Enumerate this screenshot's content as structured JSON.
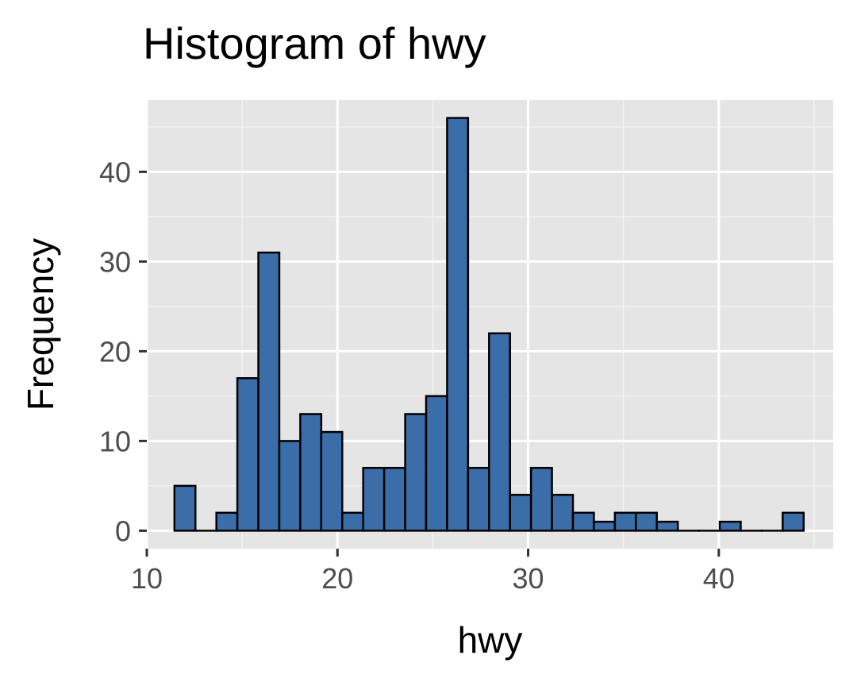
{
  "chart_data": {
    "type": "bar",
    "title": "Histogram of hwy",
    "xlabel": "hwy",
    "ylabel": "Frequency",
    "xlim": [
      10,
      46
    ],
    "ylim": [
      -2,
      48
    ],
    "x_ticks": [
      10,
      20,
      30,
      40
    ],
    "y_ticks": [
      0,
      10,
      20,
      30,
      40
    ],
    "grid": true,
    "legend": "none",
    "bin_width": 1.1,
    "bins": [
      {
        "start": 11.45,
        "end": 12.55,
        "count": 5
      },
      {
        "start": 12.55,
        "end": 13.65,
        "count": 0
      },
      {
        "start": 13.65,
        "end": 14.75,
        "count": 2
      },
      {
        "start": 14.75,
        "end": 15.85,
        "count": 17
      },
      {
        "start": 15.85,
        "end": 16.95,
        "count": 31
      },
      {
        "start": 16.95,
        "end": 18.05,
        "count": 10
      },
      {
        "start": 18.05,
        "end": 19.15,
        "count": 13
      },
      {
        "start": 19.15,
        "end": 20.25,
        "count": 11
      },
      {
        "start": 20.25,
        "end": 21.35,
        "count": 2
      },
      {
        "start": 21.35,
        "end": 22.45,
        "count": 7
      },
      {
        "start": 22.45,
        "end": 23.55,
        "count": 7
      },
      {
        "start": 23.55,
        "end": 24.65,
        "count": 13
      },
      {
        "start": 24.65,
        "end": 25.75,
        "count": 15
      },
      {
        "start": 25.75,
        "end": 26.85,
        "count": 46
      },
      {
        "start": 26.85,
        "end": 27.95,
        "count": 7
      },
      {
        "start": 27.95,
        "end": 29.05,
        "count": 22
      },
      {
        "start": 29.05,
        "end": 30.15,
        "count": 4
      },
      {
        "start": 30.15,
        "end": 31.25,
        "count": 7
      },
      {
        "start": 31.25,
        "end": 32.35,
        "count": 4
      },
      {
        "start": 32.35,
        "end": 33.45,
        "count": 2
      },
      {
        "start": 33.45,
        "end": 34.55,
        "count": 1
      },
      {
        "start": 34.55,
        "end": 35.65,
        "count": 2
      },
      {
        "start": 35.65,
        "end": 36.75,
        "count": 2
      },
      {
        "start": 36.75,
        "end": 37.85,
        "count": 1
      },
      {
        "start": 37.85,
        "end": 38.95,
        "count": 0
      },
      {
        "start": 38.95,
        "end": 40.05,
        "count": 0
      },
      {
        "start": 40.05,
        "end": 41.15,
        "count": 1
      },
      {
        "start": 41.15,
        "end": 42.25,
        "count": 0
      },
      {
        "start": 42.25,
        "end": 43.35,
        "count": 0
      },
      {
        "start": 43.35,
        "end": 44.45,
        "count": 2
      }
    ],
    "colors": {
      "bar_fill": "#3b6ea8",
      "bar_outline": "#000000",
      "panel_background": "#e5e5e5",
      "grid_major": "#ffffff",
      "grid_minor": "#f2f2f2"
    }
  }
}
